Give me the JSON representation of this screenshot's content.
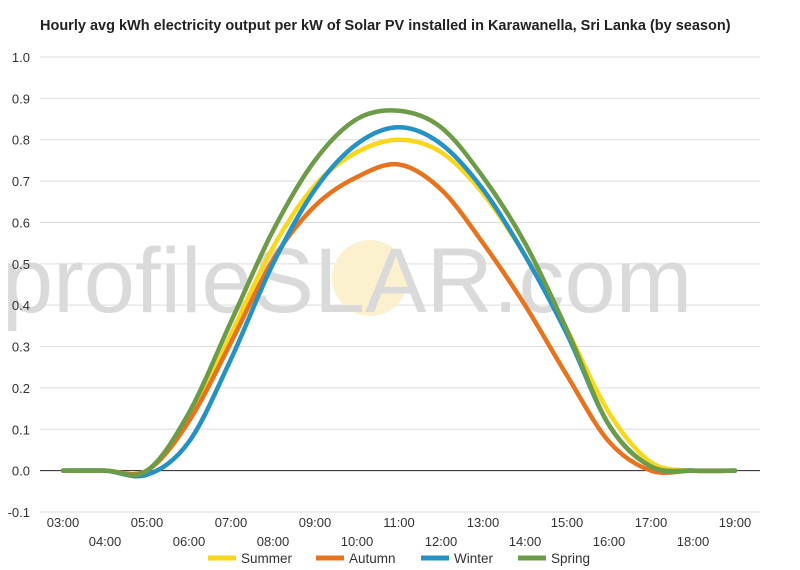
{
  "title": "Hourly avg kWh electricity output per kW of Solar PV installed in Karawanella, Sri Lanka (by season)",
  "watermark": {
    "part1": "profile",
    "part2": "S",
    "part3": "LAR.com"
  },
  "colors": {
    "Summer": "#F9D71C",
    "Autumn": "#E8731F",
    "Winter": "#2591C4",
    "Spring": "#6C9C48",
    "grid": "#dddddd",
    "zero": "#222222"
  },
  "chart_data": {
    "type": "line",
    "title": "Hourly avg kWh electricity output per kW of Solar PV installed in Karawanella, Sri Lanka (by season)",
    "xlabel": "",
    "ylabel": "",
    "ylim": [
      -0.1,
      1.0
    ],
    "yticks": [
      "1.0",
      "0.9",
      "0.8",
      "0.7",
      "0.6",
      "0.5",
      "0.4",
      "0.3",
      "0.2",
      "0.1",
      "0.0",
      "-0.1"
    ],
    "x": [
      "03:00",
      "04:00",
      "05:00",
      "06:00",
      "07:00",
      "08:00",
      "09:00",
      "10:00",
      "11:00",
      "12:00",
      "13:00",
      "14:00",
      "15:00",
      "16:00",
      "17:00",
      "18:00",
      "19:00"
    ],
    "grid": "horizontal",
    "legend_position": "bottom",
    "series": [
      {
        "name": "Summer",
        "values": [
          0.0,
          0.0,
          0.0,
          0.12,
          0.33,
          0.54,
          0.69,
          0.77,
          0.8,
          0.77,
          0.67,
          0.52,
          0.34,
          0.14,
          0.02,
          0.0,
          0.0
        ]
      },
      {
        "name": "Autumn",
        "values": [
          0.0,
          0.0,
          0.0,
          0.12,
          0.31,
          0.51,
          0.64,
          0.71,
          0.74,
          0.68,
          0.55,
          0.4,
          0.23,
          0.07,
          0.0,
          0.0,
          0.0
        ]
      },
      {
        "name": "Winter",
        "values": [
          0.0,
          0.0,
          -0.01,
          0.07,
          0.27,
          0.5,
          0.68,
          0.79,
          0.83,
          0.79,
          0.68,
          0.52,
          0.33,
          0.11,
          0.01,
          0.0,
          0.0
        ]
      },
      {
        "name": "Spring",
        "values": [
          0.0,
          0.0,
          0.0,
          0.14,
          0.36,
          0.58,
          0.75,
          0.85,
          0.87,
          0.83,
          0.71,
          0.55,
          0.34,
          0.11,
          0.01,
          0.0,
          0.0
        ]
      }
    ]
  }
}
